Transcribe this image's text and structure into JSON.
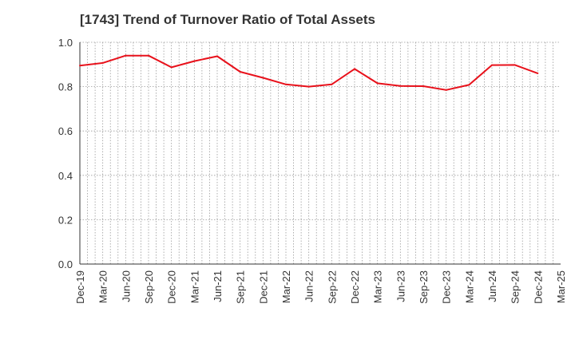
{
  "chart_data": {
    "type": "line",
    "title": "[1743]  Trend of Turnover Ratio of Total Assets",
    "xlabel": "",
    "ylabel": "",
    "ylim": [
      0.0,
      1.0
    ],
    "yticks": [
      "0.0",
      "0.2",
      "0.4",
      "0.6",
      "0.8",
      "1.0"
    ],
    "categories": [
      "Dec-19",
      "Mar-20",
      "Jun-20",
      "Sep-20",
      "Dec-20",
      "Mar-21",
      "Jun-21",
      "Sep-21",
      "Dec-21",
      "Mar-22",
      "Jun-22",
      "Sep-22",
      "Dec-22",
      "Mar-23",
      "Jun-23",
      "Sep-23",
      "Dec-23",
      "Mar-24",
      "Jun-24",
      "Sep-24",
      "Dec-24",
      "Mar-25"
    ],
    "grid": true,
    "series": [
      {
        "color": "#e8111b",
        "values": [
          0.895,
          0.907,
          0.94,
          0.94,
          0.887,
          0.915,
          0.937,
          0.867,
          0.84,
          0.81,
          0.8,
          0.81,
          0.88,
          0.815,
          0.803,
          0.802,
          0.785,
          0.808,
          0.897,
          0.898,
          0.86,
          null
        ]
      }
    ]
  }
}
